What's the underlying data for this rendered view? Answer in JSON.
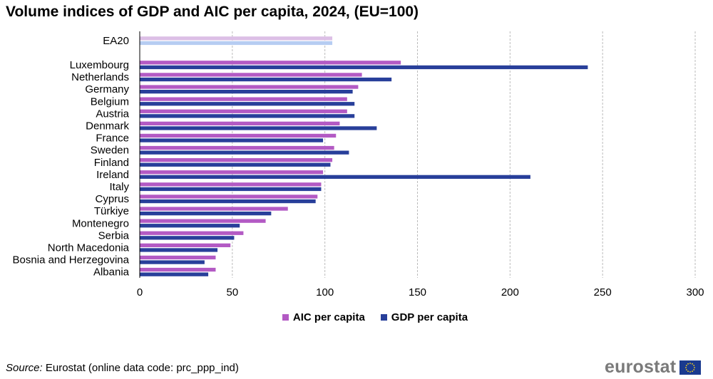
{
  "title": "Volume indices of GDP and AIC per capita, 2024, (EU=100)",
  "source": {
    "label": "Source:",
    "text": " Eurostat (online data code: prc_ppp_ind)"
  },
  "logo": {
    "text": "eurostat",
    "icon": "eu-flag-icon"
  },
  "colors": {
    "aic": "#b35ac4",
    "gdp": "#283f9a",
    "aic_ea": "#dcbfe6",
    "gdp_ea": "#b6cdf2",
    "grid": "#bbbbbb",
    "axis": "#000000"
  },
  "chart_data": {
    "type": "bar",
    "orientation": "horizontal",
    "title": "Volume indices of GDP and AIC per capita, 2024, (EU=100)",
    "xlim": [
      0,
      300
    ],
    "xticks": [
      0,
      50,
      100,
      150,
      200,
      250,
      300
    ],
    "grid": "vertical-dashed",
    "legend_placement": "bottom",
    "categories": [
      "EA20",
      "Luxembourg",
      "Netherlands",
      "Germany",
      "Belgium",
      "Austria",
      "Denmark",
      "France",
      "Sweden",
      "Finland",
      "Ireland",
      "Italy",
      "Cyprus",
      "Türkiye",
      "Montenegro",
      "Serbia",
      "North Macedonia",
      "Bosnia and Herzegovina",
      "Albania"
    ],
    "series": [
      {
        "name": "AIC per capita",
        "values": [
          104,
          141,
          120,
          118,
          112,
          112,
          108,
          106,
          105,
          104,
          99,
          98,
          96,
          80,
          68,
          56,
          49,
          41,
          41
        ]
      },
      {
        "name": "GDP per capita",
        "values": [
          104,
          242,
          136,
          115,
          116,
          116,
          128,
          99,
          113,
          103,
          211,
          98,
          95,
          71,
          54,
          51,
          42,
          35,
          37
        ]
      }
    ]
  }
}
